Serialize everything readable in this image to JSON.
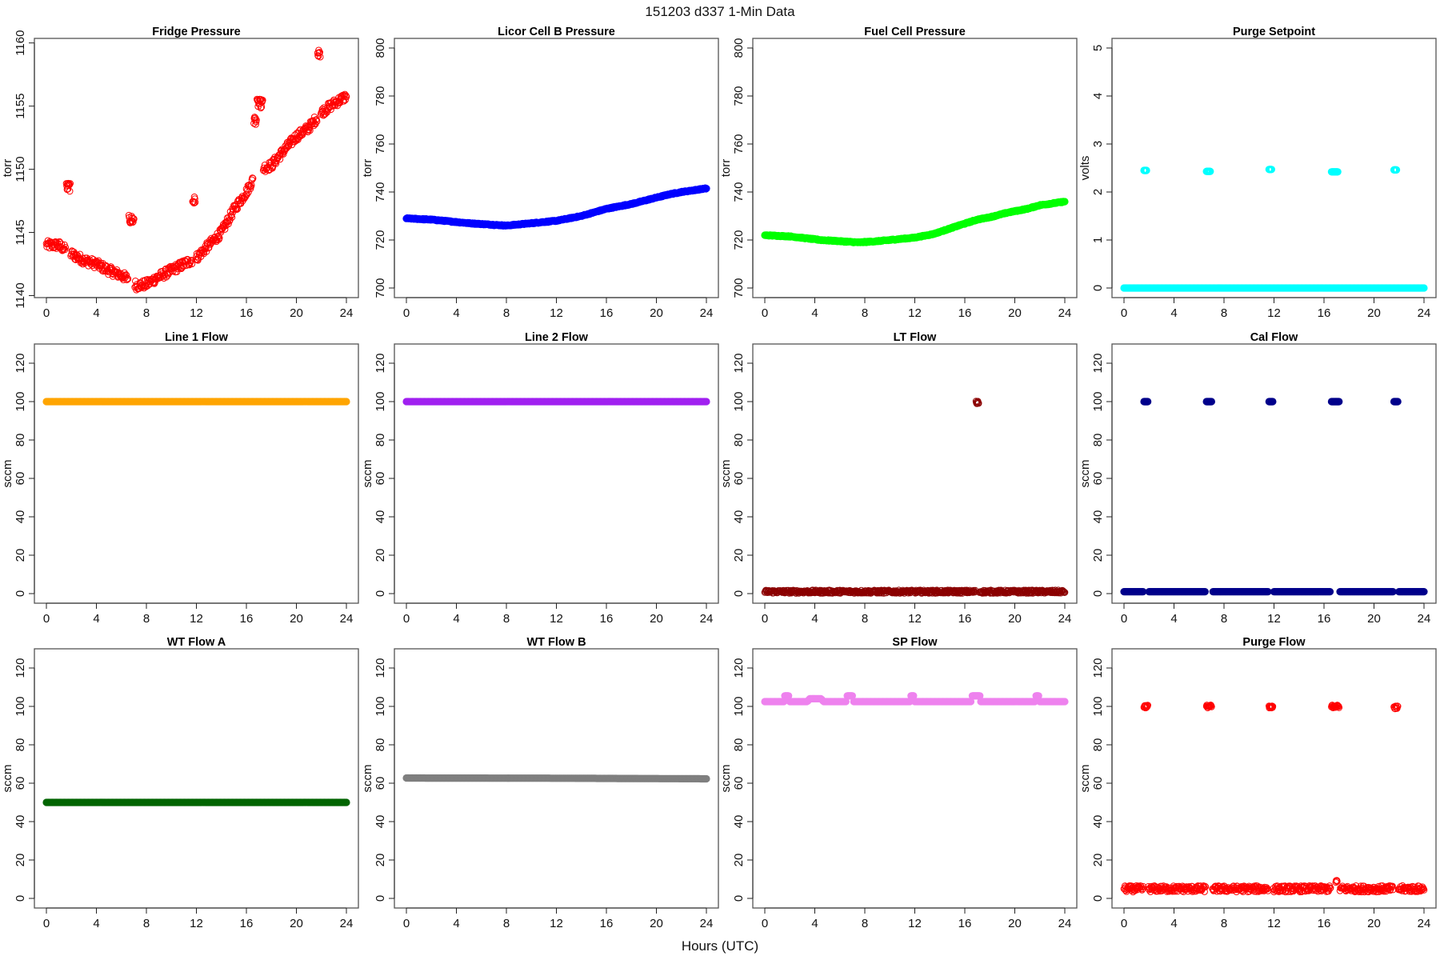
{
  "title": "151203   d337   1-Min Data",
  "xlabel": "Hours (UTC)",
  "chart_data": [
    {
      "type": "scatter",
      "title": "Fridge Pressure",
      "ylabel": "torr",
      "color": "#FF0000",
      "marker": "open",
      "ylim": [
        1140.6,
        1159.6
      ],
      "yticks": [
        1140,
        1145,
        1150,
        1155,
        1160
      ],
      "scatter": 0.35,
      "gap": true,
      "series": [
        [
          0,
          1144.0
        ],
        [
          1,
          1144.0
        ],
        [
          2,
          1143.3
        ],
        [
          3,
          1142.8
        ],
        [
          4,
          1142.5
        ],
        [
          5,
          1142.0
        ],
        [
          6,
          1141.6
        ],
        [
          6.8,
          1141.2
        ],
        [
          7.2,
          1140.8
        ],
        [
          8,
          1140.9
        ],
        [
          9,
          1141.5
        ],
        [
          10,
          1142.0
        ],
        [
          11,
          1142.5
        ],
        [
          12,
          1143.0
        ],
        [
          13,
          1144.0
        ],
        [
          14,
          1145.0
        ],
        [
          15,
          1146.8
        ],
        [
          16,
          1148.2
        ],
        [
          16.7,
          1149.5
        ],
        [
          17,
          1150.0
        ],
        [
          18,
          1150.3
        ],
        [
          19,
          1151.5
        ],
        [
          20,
          1152.6
        ],
        [
          21,
          1153.3
        ],
        [
          22,
          1154.5
        ],
        [
          23,
          1155.2
        ],
        [
          24,
          1155.8
        ]
      ],
      "clusters": [
        [
          1.6,
          1.9,
          1148.6
        ],
        [
          6.6,
          7.0,
          1146.0
        ],
        [
          11.7,
          11.9,
          1147.5
        ],
        [
          16.6,
          16.8,
          1153.9
        ],
        [
          16.85,
          17.3,
          1155.2
        ],
        [
          21.7,
          21.9,
          1159.1
        ]
      ]
    },
    {
      "type": "scatter",
      "title": "Licor Cell B Pressure",
      "ylabel": "torr",
      "color": "#0000FF",
      "marker": "filled",
      "ylim": [
        700,
        800
      ],
      "yticks": [
        700,
        720,
        740,
        760,
        780,
        800
      ],
      "scatter": 0.2,
      "gap": false,
      "series": [
        [
          0,
          729
        ],
        [
          2,
          728.5
        ],
        [
          5,
          727
        ],
        [
          8,
          726
        ],
        [
          10,
          727
        ],
        [
          12,
          728
        ],
        [
          14,
          730
        ],
        [
          16,
          733
        ],
        [
          18,
          735
        ],
        [
          19.5,
          737
        ],
        [
          21,
          739
        ],
        [
          22,
          740
        ],
        [
          24,
          741.5
        ]
      ],
      "clusters": []
    },
    {
      "type": "scatter",
      "title": "Fuel Cell Pressure",
      "ylabel": "torr",
      "color": "#00FF00",
      "marker": "filled",
      "ylim": [
        700,
        800
      ],
      "yticks": [
        700,
        720,
        740,
        760,
        780,
        800
      ],
      "scatter": 0.2,
      "gap": false,
      "series": [
        [
          0,
          722
        ],
        [
          2,
          721.5
        ],
        [
          4.5,
          720
        ],
        [
          7.5,
          719
        ],
        [
          9,
          719.5
        ],
        [
          11,
          720.5
        ],
        [
          12,
          721
        ],
        [
          13.5,
          722.5
        ],
        [
          15.5,
          726
        ],
        [
          17,
          728.5
        ],
        [
          18,
          729.5
        ],
        [
          19.5,
          731.5
        ],
        [
          21,
          733
        ],
        [
          22,
          734.5
        ],
        [
          24,
          736
        ]
      ],
      "clusters": []
    },
    {
      "type": "scatter",
      "title": "Purge Setpoint",
      "ylabel": "volts",
      "color": "#00FFFF",
      "marker": "baseline-filled",
      "ylim": [
        0,
        5
      ],
      "yticks": [
        0,
        1,
        2,
        3,
        4,
        5
      ],
      "scatter": 0,
      "gap": false,
      "series": [
        [
          0,
          0
        ],
        [
          24,
          0
        ]
      ],
      "clusters": [
        [
          1.6,
          1.8,
          2.45
        ],
        [
          6.6,
          6.9,
          2.43
        ],
        [
          11.6,
          11.8,
          2.47
        ],
        [
          16.6,
          17.1,
          2.42
        ],
        [
          21.6,
          21.8,
          2.46
        ]
      ]
    },
    {
      "type": "scatter",
      "title": "Line 1 Flow",
      "ylabel": "sccm",
      "color": "#FFA500",
      "marker": "filled",
      "ylim": [
        0,
        125
      ],
      "yticks": [
        0,
        20,
        40,
        60,
        80,
        100,
        120
      ],
      "scatter": 0,
      "gap": false,
      "series": [
        [
          0,
          100
        ],
        [
          24,
          100
        ]
      ],
      "clusters": []
    },
    {
      "type": "scatter",
      "title": "Line 2 Flow",
      "ylabel": "sccm",
      "color": "#A020F0",
      "marker": "filled",
      "ylim": [
        0,
        125
      ],
      "yticks": [
        0,
        20,
        40,
        60,
        80,
        100,
        120
      ],
      "scatter": 0,
      "gap": false,
      "series": [
        [
          0,
          100
        ],
        [
          24,
          100
        ]
      ],
      "clusters": []
    },
    {
      "type": "scatter",
      "title": "LT Flow",
      "ylabel": "sccm",
      "color": "#8B0000",
      "marker": "open",
      "ylim": [
        0,
        125
      ],
      "yticks": [
        0,
        20,
        40,
        60,
        80,
        100,
        120
      ],
      "scatter": 0.8,
      "gap": true,
      "series": [
        [
          0,
          1
        ],
        [
          24,
          1
        ]
      ],
      "clusters": [
        [
          16.9,
          17.1,
          99.5
        ]
      ]
    },
    {
      "type": "scatter",
      "title": "Cal Flow",
      "ylabel": "sccm",
      "color": "#00008B",
      "marker": "filled",
      "ylim": [
        0,
        125
      ],
      "yticks": [
        0,
        20,
        40,
        60,
        80,
        100,
        120
      ],
      "scatter": 0,
      "gap": true,
      "series": [
        [
          0,
          1
        ],
        [
          24,
          1
        ]
      ],
      "clusters": [
        [
          1.6,
          1.9,
          100
        ],
        [
          6.6,
          7.0,
          100
        ],
        [
          11.6,
          11.9,
          100
        ],
        [
          16.6,
          17.2,
          100
        ],
        [
          21.6,
          21.9,
          100
        ]
      ]
    },
    {
      "type": "scatter",
      "title": "WT Flow A",
      "ylabel": "sccm",
      "color": "#006400",
      "marker": "filled",
      "ylim": [
        0,
        125
      ],
      "yticks": [
        0,
        20,
        40,
        60,
        80,
        100,
        120
      ],
      "scatter": 0,
      "gap": false,
      "series": [
        [
          0,
          50
        ],
        [
          24,
          50
        ]
      ],
      "clusters": []
    },
    {
      "type": "scatter",
      "title": "WT Flow B",
      "ylabel": "sccm",
      "color": "#7F7F7F",
      "marker": "filled",
      "ylim": [
        0,
        125
      ],
      "yticks": [
        0,
        20,
        40,
        60,
        80,
        100,
        120
      ],
      "scatter": 0,
      "gap": false,
      "series": [
        [
          0,
          62.7
        ],
        [
          12,
          62.6
        ],
        [
          24,
          62.3
        ]
      ],
      "clusters": []
    },
    {
      "type": "scatter",
      "title": "SP Flow",
      "ylabel": "sccm",
      "color": "#EE82EE",
      "marker": "filled",
      "ylim": [
        0,
        125
      ],
      "yticks": [
        0,
        20,
        40,
        60,
        80,
        100,
        120
      ],
      "scatter": 0,
      "gap": true,
      "series": [
        [
          0,
          102.5
        ],
        [
          3.4,
          102.5
        ],
        [
          3.6,
          104
        ],
        [
          4.5,
          104
        ],
        [
          4.7,
          102.5
        ],
        [
          24,
          102.5
        ]
      ],
      "clusters": [
        [
          1.6,
          1.9,
          105.5
        ],
        [
          6.6,
          7.0,
          105.5
        ],
        [
          11.7,
          11.9,
          105.5
        ],
        [
          16.6,
          17.2,
          105.5
        ],
        [
          21.7,
          21.9,
          105.5
        ]
      ]
    },
    {
      "type": "scatter",
      "title": "Purge Flow",
      "ylabel": "sccm",
      "color": "#FF0000",
      "marker": "open",
      "ylim": [
        0,
        125
      ],
      "yticks": [
        0,
        20,
        40,
        60,
        80,
        100,
        120
      ],
      "scatter": 1.6,
      "gap": true,
      "series": [
        [
          0,
          5
        ],
        [
          24,
          5
        ]
      ],
      "clusters": [
        [
          1.6,
          1.9,
          100
        ],
        [
          6.6,
          7.0,
          100
        ],
        [
          11.6,
          11.9,
          99.5
        ],
        [
          16.6,
          17.2,
          100
        ],
        [
          16.95,
          17.05,
          9
        ],
        [
          21.6,
          21.9,
          99.5
        ]
      ]
    }
  ],
  "xaxis": {
    "ticks": [
      0,
      4,
      8,
      12,
      16,
      20,
      24
    ],
    "range": [
      0,
      24
    ]
  }
}
